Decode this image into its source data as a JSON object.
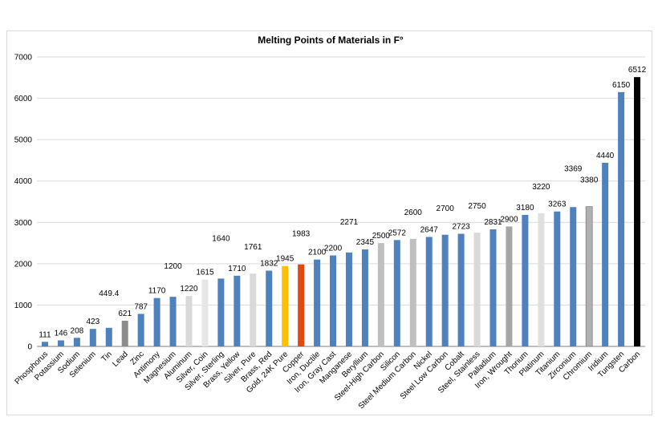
{
  "chart_data": {
    "type": "bar",
    "title": "Melting Points of Materials in F°",
    "xlabel": "",
    "ylabel": "",
    "ylim": [
      0,
      7000
    ],
    "yticks": [
      0,
      1000,
      2000,
      3000,
      4000,
      5000,
      6000,
      7000
    ],
    "grid": true,
    "legend": "none",
    "categories": [
      "Phosphorus",
      "Potassium",
      "Sodium",
      "Selenium",
      "Tin",
      "Lead",
      "Zinc",
      "Antimony",
      "Magnesium",
      "Aluminum",
      "Silver, Coin",
      "Silver, Sterling",
      "Brass, Yellow",
      "Silver, Pure",
      "Brass, Red",
      "Gold, 24K Pure",
      "Copper",
      "Iron, Ductile",
      "Iron, Gray Cast",
      "Manganese",
      "Beryllium",
      "Steel-High Carbon",
      "Silicon",
      "Steel Medium Carbon",
      "Nickel",
      "Steel Low Carbon",
      "Cobalt",
      "Steel, Stainless",
      "Palladium",
      "Iron, Wrought",
      "Thorium",
      "Platinum",
      "Titanium",
      "Zirconium",
      "Chromium",
      "Iridium",
      "Tungsten",
      "Carbon"
    ],
    "values": [
      111,
      146,
      208,
      423,
      449.4,
      621,
      787,
      1170,
      1200,
      1220,
      1615,
      1640,
      1710,
      1761,
      1832,
      1945,
      1983,
      2100,
      2200,
      2271,
      2345,
      2500,
      2572,
      2600,
      2647,
      2700,
      2723,
      2750,
      2831,
      2900,
      3180,
      3220,
      3263,
      3369,
      3380,
      4440,
      6150,
      6512
    ],
    "data_labels": [
      "111",
      "146",
      "208",
      "423",
      "449.4",
      "621",
      "787",
      "1170",
      "1200",
      "1220",
      "1615",
      "1640",
      "1710",
      "1761",
      "1832",
      "1945",
      "1983",
      "2100",
      "2200",
      "2271",
      "2345",
      "2500",
      "2572",
      "2600",
      "2647",
      "2700",
      "2723",
      "2750",
      "2831",
      "2900",
      "3180",
      "3220",
      "3263",
      "3369",
      "3380",
      "4440",
      "6150",
      "6512"
    ],
    "colors": [
      "#4f81bd",
      "#4f81bd",
      "#4f81bd",
      "#4f81bd",
      "#4f81bd",
      "#8c8c8c",
      "#4f81bd",
      "#4f81bd",
      "#4f81bd",
      "#d9d9d9",
      "#e6e6e6",
      "#4f81bd",
      "#4f81bd",
      "#d9d9d9",
      "#4f81bd",
      "#ffc000",
      "#e04a12",
      "#4f81bd",
      "#4f81bd",
      "#4f81bd",
      "#4f81bd",
      "#bfbfbf",
      "#4f81bd",
      "#bfbfbf",
      "#4f81bd",
      "#4f81bd",
      "#4f81bd",
      "#d9d9d9",
      "#4f81bd",
      "#a6a6a6",
      "#4f81bd",
      "#e0e0e0",
      "#4f81bd",
      "#4f81bd",
      "#b0b0b0",
      "#4f81bd",
      "#4f81bd",
      "#000000"
    ]
  }
}
